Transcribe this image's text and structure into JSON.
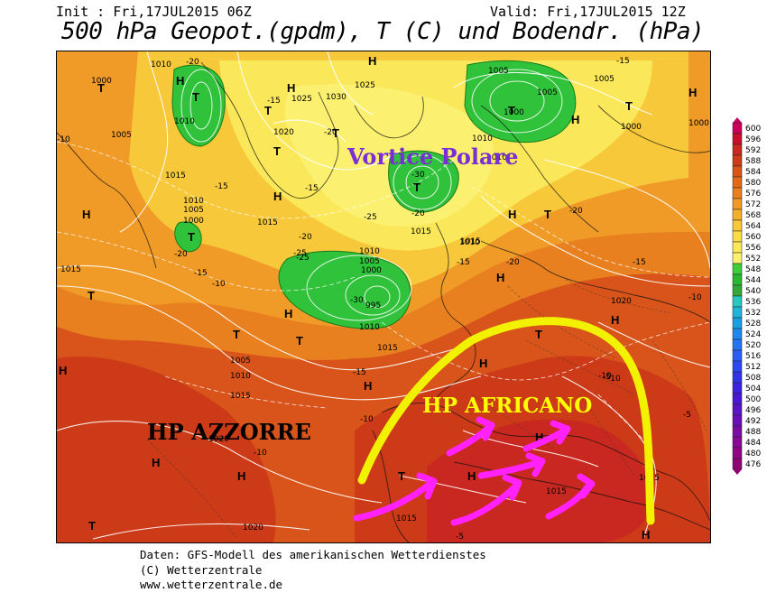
{
  "header": {
    "init": "Init : Fri,17JUL2015 06Z",
    "valid": "Valid: Fri,17JUL2015 12Z",
    "title": "500 hPa Geopot.(gpdm), T (C) und Bodendr. (hPa)"
  },
  "footer": {
    "line1": "Daten: GFS-Modell des amerikanischen Wetterdienstes",
    "line2": "(C) Wetterzentrale",
    "line3": "www.wetterzentrale.de"
  },
  "annotations": {
    "vortex": "Vortice Polare",
    "hp_africano": "HP AFRICANO",
    "hp_azzorre": "HP AZZORRE"
  },
  "colors": {
    "vortex_text": "#7a2fd4",
    "africano_text": "#ffff00",
    "azzorre_text": "#000000",
    "arc": "#f2f200",
    "arrows": "#ff22ff"
  },
  "legend": {
    "values": [
      "600",
      "596",
      "592",
      "588",
      "584",
      "580",
      "576",
      "572",
      "568",
      "564",
      "560",
      "556",
      "552",
      "548",
      "544",
      "540",
      "536",
      "532",
      "528",
      "524",
      "520",
      "516",
      "512",
      "508",
      "504",
      "500",
      "496",
      "492",
      "488",
      "484",
      "480",
      "476"
    ],
    "colors": [
      "#c8005a",
      "#c8102a",
      "#c82820",
      "#cc3a18",
      "#d8541a",
      "#e06a1a",
      "#e88020",
      "#f09a28",
      "#f2b02e",
      "#f6c83a",
      "#f8dc48",
      "#fae85a",
      "#fcf070",
      "#3ccc3c",
      "#2ab82e",
      "#34a834",
      "#28c8c0",
      "#20b4d8",
      "#1aa0e0",
      "#2088ec",
      "#2474f2",
      "#2a5ef4",
      "#2e48f0",
      "#3232e6",
      "#3c22dc",
      "#4a18d0",
      "#5a14c4",
      "#6a10b4",
      "#7a0ca4",
      "#880894",
      "#900684",
      "#900474"
    ]
  },
  "pressure_labels": [
    "1010",
    "1000",
    "1005",
    "1010",
    "1015",
    "1010",
    "1005",
    "1000",
    "1020",
    "1025",
    "1030",
    "1025",
    "1005",
    "1000",
    "1005",
    "1010",
    "1015",
    "1010",
    "1015",
    "1010",
    "1005",
    "1000",
    "995",
    "1010",
    "1015",
    "1015",
    "1010",
    "1005",
    "1010",
    "1015",
    "1020",
    "1020",
    "1015",
    "1015",
    "1015",
    "1020",
    "1000",
    "1000",
    "1005",
    "1015"
  ],
  "temperature_labels": [
    "-20",
    "-15",
    "-10",
    "-15",
    "-20",
    "-25",
    "-30",
    "-20",
    "-15",
    "-10",
    "-20",
    "-25",
    "-15",
    "-20",
    "-15",
    "-10",
    "-10",
    "-15",
    "-20",
    "-15",
    "-10",
    "-5",
    "-10",
    "-5",
    "-5",
    "-10",
    "-15",
    "-20",
    "-25",
    "-30"
  ],
  "pressure_centers": [
    "T",
    "H",
    "T",
    "H",
    "T",
    "H",
    "T",
    "T",
    "H",
    "T",
    "T",
    "H",
    "T",
    "H",
    "H",
    "T",
    "H",
    "T",
    "T",
    "H",
    "H",
    "H",
    "T",
    "H",
    "H",
    "H",
    "T",
    "T",
    "H",
    "T",
    "H",
    "T",
    "H",
    "H",
    "T",
    "H"
  ]
}
